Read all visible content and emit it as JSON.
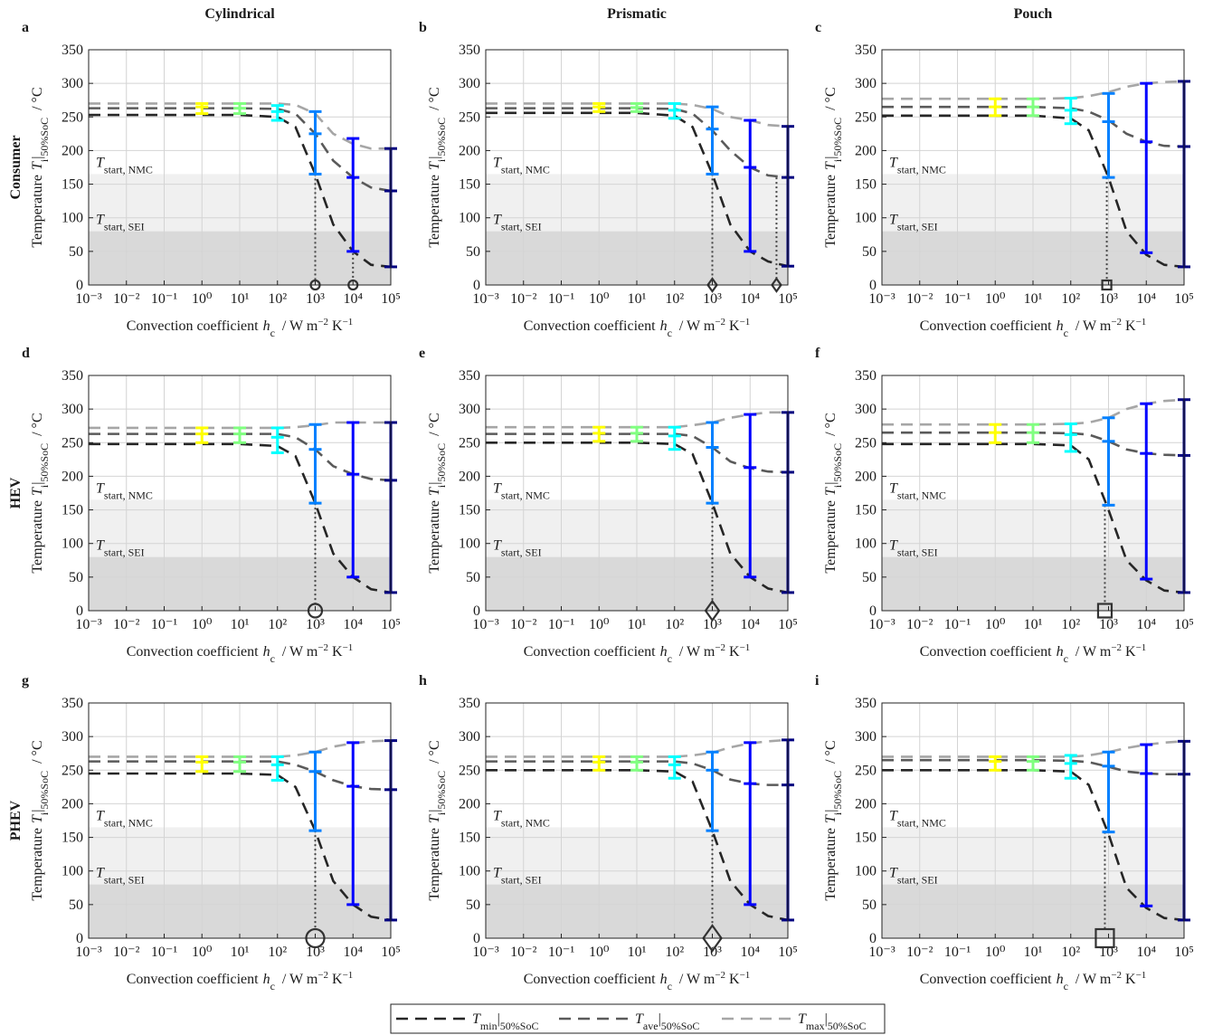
{
  "figure": {
    "column_titles": [
      "Cylindrical",
      "Prismatic",
      "Pouch"
    ],
    "row_titles": [
      "Consumer",
      "HEV",
      "PHEV"
    ],
    "ylabel": {
      "text": "Temperature",
      "symbol": "T",
      "sub": "i",
      "bar": "|",
      "cond": "50%SoC",
      "unit": "/ °C"
    },
    "xlabel": {
      "text": "Convection coefficient",
      "symbol": "h",
      "sub": "c",
      "unit": "/ W m",
      "exp1": "−2",
      "unit2": "K",
      "exp2": "−1"
    },
    "xlim": [
      0.001,
      100000
    ],
    "xticks": [
      {
        "value": 0.001,
        "label": "10⁻³"
      },
      {
        "value": 0.01,
        "label": "10⁻²"
      },
      {
        "value": 0.1,
        "label": "10⁻¹"
      },
      {
        "value": 1,
        "label": "10⁰"
      },
      {
        "value": 10,
        "label": "10¹"
      },
      {
        "value": 100,
        "label": "10²"
      },
      {
        "value": 1000,
        "label": "10³"
      },
      {
        "value": 10000,
        "label": "10⁴"
      },
      {
        "value": 100000,
        "label": "10⁵"
      }
    ],
    "ylim": [
      0,
      350
    ],
    "yticks": [
      0,
      50,
      100,
      150,
      200,
      250,
      300,
      350
    ],
    "log_x": true,
    "grid": true,
    "thresholds": [
      {
        "symbol": "T",
        "sub": "start, SEI",
        "value": 80,
        "shade": "#d9d9d9"
      },
      {
        "symbol": "T",
        "sub": "start, NMC",
        "value": 165,
        "shade": "#f0f0f0"
      }
    ],
    "series_styles": [
      {
        "symbol": "T",
        "sub": "min",
        "bar": "|",
        "cond": "50%SoC",
        "color": "#262626"
      },
      {
        "symbol": "T",
        "sub": "ave",
        "bar": "|",
        "cond": "50%SoC",
        "color": "#5a5a5a"
      },
      {
        "symbol": "T",
        "sub": "max",
        "bar": "|",
        "cond": "50%SoC",
        "color": "#a6a6a6"
      }
    ],
    "errorbar_x": [
      1,
      10,
      100,
      1000,
      10000,
      100000
    ],
    "errorbar_colors": [
      "#ffff00",
      "#80ff80",
      "#00ffff",
      "#0080ff",
      "#0000ff",
      "#000080"
    ],
    "marker_color": "#333333"
  },
  "chart_data": [
    {
      "type": "line",
      "panel": "a",
      "x": [
        0.001,
        0.01,
        0.1,
        1,
        10,
        100,
        300,
        1000,
        3000,
        10000,
        30000,
        100000
      ],
      "series": [
        {
          "values": [
            253,
            253,
            253,
            253,
            253,
            250,
            235,
            165,
            90,
            50,
            30,
            27
          ]
        },
        {
          "values": [
            263,
            263,
            263,
            263,
            263,
            262,
            255,
            225,
            185,
            160,
            145,
            140
          ]
        },
        {
          "values": [
            270,
            270,
            270,
            270,
            270,
            270,
            268,
            255,
            225,
            210,
            203,
            203
          ]
        }
      ],
      "errorbars": {
        "low": [
          255,
          255,
          245,
          165,
          50,
          27
        ],
        "mid": [
          265,
          263,
          258,
          225,
          160,
          140
        ],
        "high": [
          270,
          270,
          267,
          258,
          218,
          203
        ]
      },
      "markers": [
        {
          "x": 1000,
          "y": 0,
          "top": 165,
          "shape": "circle",
          "size": "small"
        },
        {
          "x": 10000,
          "y": 0,
          "top": 155,
          "shape": "circle",
          "size": "small"
        }
      ]
    },
    {
      "type": "line",
      "panel": "b",
      "x": [
        0.001,
        0.01,
        0.1,
        1,
        10,
        100,
        300,
        1000,
        3000,
        10000,
        30000,
        100000
      ],
      "series": [
        {
          "values": [
            256,
            256,
            256,
            256,
            256,
            252,
            235,
            165,
            90,
            50,
            35,
            28
          ]
        },
        {
          "values": [
            263,
            263,
            263,
            263,
            263,
            262,
            255,
            230,
            200,
            175,
            163,
            160
          ]
        },
        {
          "values": [
            270,
            270,
            270,
            270,
            270,
            270,
            268,
            262,
            250,
            245,
            238,
            236
          ]
        }
      ],
      "errorbars": {
        "low": [
          258,
          258,
          248,
          165,
          50,
          28
        ],
        "mid": [
          265,
          264,
          260,
          232,
          175,
          160
        ],
        "high": [
          270,
          270,
          270,
          265,
          245,
          236
        ]
      },
      "markers": [
        {
          "x": 1000,
          "y": 0,
          "top": 165,
          "shape": "diamond",
          "size": "small"
        },
        {
          "x": 50000,
          "y": 0,
          "top": 160,
          "shape": "diamond",
          "size": "small"
        }
      ]
    },
    {
      "type": "line",
      "panel": "c",
      "x": [
        0.001,
        0.01,
        0.1,
        1,
        10,
        100,
        300,
        1000,
        3000,
        10000,
        30000,
        100000
      ],
      "series": [
        {
          "values": [
            252,
            252,
            252,
            252,
            252,
            248,
            230,
            160,
            80,
            45,
            30,
            27
          ]
        },
        {
          "values": [
            265,
            265,
            265,
            265,
            265,
            263,
            258,
            245,
            225,
            213,
            207,
            206
          ]
        },
        {
          "values": [
            277,
            277,
            277,
            277,
            277,
            278,
            281,
            287,
            295,
            300,
            302,
            303
          ]
        }
      ],
      "errorbars": {
        "low": [
          252,
          252,
          240,
          160,
          48,
          27
        ],
        "mid": [
          265,
          265,
          260,
          243,
          213,
          206
        ],
        "high": [
          277,
          277,
          278,
          285,
          300,
          303
        ]
      },
      "markers": [
        {
          "x": 900,
          "y": 0,
          "top": 160,
          "shape": "square",
          "size": "small"
        }
      ]
    },
    {
      "type": "line",
      "panel": "d",
      "x": [
        0.001,
        0.01,
        0.1,
        1,
        10,
        100,
        300,
        1000,
        3000,
        10000,
        30000,
        100000
      ],
      "series": [
        {
          "values": [
            248,
            248,
            248,
            248,
            248,
            245,
            230,
            160,
            85,
            50,
            32,
            27
          ]
        },
        {
          "values": [
            263,
            263,
            263,
            263,
            263,
            263,
            258,
            240,
            215,
            203,
            196,
            194
          ]
        },
        {
          "values": [
            272,
            272,
            272,
            272,
            272,
            272,
            273,
            276,
            280,
            280,
            280,
            280
          ]
        }
      ],
      "errorbars": {
        "low": [
          250,
          250,
          235,
          160,
          50,
          27
        ],
        "mid": [
          263,
          263,
          258,
          240,
          203,
          194
        ],
        "high": [
          272,
          272,
          272,
          277,
          280,
          280
        ]
      },
      "markers": [
        {
          "x": 1000,
          "y": 0,
          "top": 160,
          "shape": "circle",
          "size": "medium"
        }
      ]
    },
    {
      "type": "line",
      "panel": "e",
      "x": [
        0.001,
        0.01,
        0.1,
        1,
        10,
        100,
        300,
        1000,
        3000,
        10000,
        30000,
        100000
      ],
      "series": [
        {
          "values": [
            250,
            250,
            250,
            250,
            250,
            248,
            233,
            160,
            85,
            50,
            33,
            27
          ]
        },
        {
          "values": [
            263,
            263,
            263,
            263,
            263,
            263,
            260,
            243,
            222,
            212,
            207,
            206
          ]
        },
        {
          "values": [
            273,
            273,
            273,
            273,
            273,
            273,
            276,
            280,
            287,
            292,
            295,
            295
          ]
        }
      ],
      "errorbars": {
        "low": [
          252,
          252,
          240,
          160,
          50,
          27
        ],
        "mid": [
          264,
          264,
          260,
          243,
          213,
          206
        ],
        "high": [
          273,
          273,
          273,
          280,
          292,
          295
        ]
      },
      "markers": [
        {
          "x": 1000,
          "y": 0,
          "top": 160,
          "shape": "diamond",
          "size": "medium"
        }
      ]
    },
    {
      "type": "line",
      "panel": "f",
      "x": [
        0.001,
        0.01,
        0.1,
        1,
        10,
        100,
        300,
        1000,
        3000,
        10000,
        30000,
        100000
      ],
      "series": [
        {
          "values": [
            248,
            248,
            248,
            248,
            248,
            246,
            225,
            150,
            75,
            45,
            30,
            27
          ]
        },
        {
          "values": [
            265,
            265,
            265,
            265,
            265,
            264,
            262,
            252,
            240,
            234,
            232,
            231
          ]
        },
        {
          "values": [
            277,
            277,
            277,
            277,
            277,
            278,
            280,
            287,
            300,
            308,
            312,
            314
          ]
        }
      ],
      "errorbars": {
        "low": [
          250,
          250,
          237,
          157,
          47,
          27
        ],
        "mid": [
          265,
          265,
          262,
          252,
          234,
          231
        ],
        "high": [
          277,
          277,
          278,
          287,
          308,
          314
        ]
      },
      "markers": [
        {
          "x": 800,
          "y": 0,
          "top": 157,
          "shape": "square",
          "size": "medium"
        }
      ]
    },
    {
      "type": "line",
      "panel": "g",
      "x": [
        0.001,
        0.01,
        0.1,
        1,
        10,
        100,
        300,
        1000,
        3000,
        10000,
        30000,
        100000
      ],
      "series": [
        {
          "values": [
            245,
            245,
            245,
            245,
            245,
            243,
            225,
            160,
            85,
            50,
            32,
            27
          ]
        },
        {
          "values": [
            263,
            263,
            263,
            263,
            263,
            263,
            258,
            248,
            235,
            226,
            222,
            221
          ]
        },
        {
          "values": [
            270,
            270,
            270,
            270,
            270,
            270,
            272,
            277,
            285,
            290,
            293,
            294
          ]
        }
      ],
      "errorbars": {
        "low": [
          248,
          248,
          235,
          160,
          50,
          27
        ],
        "mid": [
          262,
          262,
          258,
          248,
          226,
          221
        ],
        "high": [
          270,
          270,
          270,
          277,
          291,
          294
        ]
      },
      "markers": [
        {
          "x": 1000,
          "y": 0,
          "top": 160,
          "shape": "circle",
          "size": "large"
        }
      ]
    },
    {
      "type": "line",
      "panel": "h",
      "x": [
        0.001,
        0.01,
        0.1,
        1,
        10,
        100,
        300,
        1000,
        3000,
        10000,
        30000,
        100000
      ],
      "series": [
        {
          "values": [
            250,
            250,
            250,
            250,
            250,
            248,
            233,
            160,
            85,
            50,
            33,
            27
          ]
        },
        {
          "values": [
            263,
            263,
            263,
            263,
            263,
            263,
            260,
            250,
            236,
            230,
            228,
            228
          ]
        },
        {
          "values": [
            270,
            270,
            270,
            270,
            270,
            270,
            272,
            276,
            284,
            290,
            293,
            295
          ]
        }
      ],
      "errorbars": {
        "low": [
          250,
          250,
          238,
          160,
          50,
          27
        ],
        "mid": [
          262,
          262,
          258,
          250,
          230,
          228
        ],
        "high": [
          270,
          270,
          270,
          277,
          291,
          295
        ]
      },
      "markers": [
        {
          "x": 1000,
          "y": 0,
          "top": 160,
          "shape": "diamond",
          "size": "large"
        }
      ]
    },
    {
      "type": "line",
      "panel": "i",
      "x": [
        0.001,
        0.01,
        0.1,
        1,
        10,
        100,
        300,
        1000,
        3000,
        10000,
        30000,
        100000
      ],
      "series": [
        {
          "values": [
            250,
            250,
            250,
            250,
            250,
            248,
            228,
            155,
            75,
            45,
            30,
            27
          ]
        },
        {
          "values": [
            265,
            265,
            265,
            265,
            265,
            264,
            262,
            255,
            248,
            245,
            244,
            244
          ]
        },
        {
          "values": [
            270,
            270,
            270,
            270,
            270,
            270,
            272,
            277,
            283,
            288,
            291,
            293
          ]
        }
      ],
      "errorbars": {
        "low": [
          250,
          250,
          238,
          158,
          48,
          27
        ],
        "mid": [
          263,
          263,
          260,
          256,
          245,
          244
        ],
        "high": [
          270,
          270,
          272,
          277,
          288,
          293
        ]
      },
      "markers": [
        {
          "x": 800,
          "y": 0,
          "top": 158,
          "shape": "square",
          "size": "large"
        }
      ]
    }
  ]
}
